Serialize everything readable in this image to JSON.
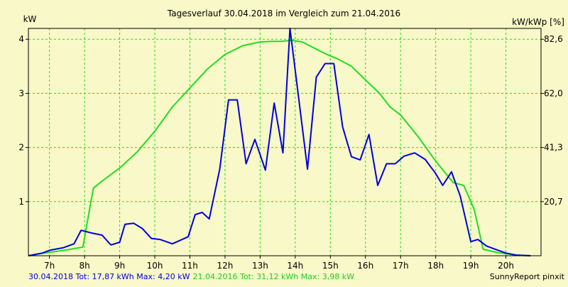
{
  "chart_data": {
    "type": "line",
    "title": "Tagesverlauf 30.04.2018 im Vergleich zum 21.04.2016",
    "ylabel_left": "kW",
    "ylabel_right": "kW/kWp [%]",
    "xlim": [
      6.4,
      21.0
    ],
    "ylim": [
      0,
      4.2
    ],
    "y_ticks_left": [
      {
        "value": 1,
        "label": "1"
      },
      {
        "value": 2,
        "label": "2"
      },
      {
        "value": 3,
        "label": "3"
      },
      {
        "value": 4,
        "label": "4"
      }
    ],
    "y_ticks_right": [
      {
        "value": 1,
        "label": "20,7"
      },
      {
        "value": 2,
        "label": "41,3"
      },
      {
        "value": 3,
        "label": "62,0"
      },
      {
        "value": 4,
        "label": "82,6"
      }
    ],
    "x_ticks": [
      {
        "value": 7,
        "label": "7h"
      },
      {
        "value": 8,
        "label": "8h"
      },
      {
        "value": 9,
        "label": "9h"
      },
      {
        "value": 10,
        "label": "10h"
      },
      {
        "value": 11,
        "label": "11h"
      },
      {
        "value": 12,
        "label": "12h"
      },
      {
        "value": 13,
        "label": "13h"
      },
      {
        "value": 14,
        "label": "14h"
      },
      {
        "value": 15,
        "label": "15h"
      },
      {
        "value": 16,
        "label": "16h"
      },
      {
        "value": 17,
        "label": "17h"
      },
      {
        "value": 18,
        "label": "18h"
      },
      {
        "value": 19,
        "label": "19h"
      },
      {
        "value": 20,
        "label": "20h"
      }
    ],
    "grid": true,
    "series": [
      {
        "color": "#22dd22",
        "x": [
          6.4,
          6.85,
          7.2,
          7.6,
          7.95,
          8.25,
          8.5,
          9.0,
          9.5,
          10.0,
          10.5,
          11.0,
          11.5,
          12.0,
          12.5,
          13.0,
          13.35,
          13.6,
          13.9,
          14.2,
          14.5,
          14.9,
          15.2,
          15.6,
          16.0,
          16.4,
          16.7,
          17.0,
          17.5,
          18.0,
          18.5,
          18.8,
          19.1,
          19.35,
          19.75,
          20.2,
          20.7
        ],
        "y": [
          0.0,
          0.05,
          0.08,
          0.12,
          0.16,
          1.25,
          1.38,
          1.62,
          1.92,
          2.3,
          2.75,
          3.1,
          3.45,
          3.72,
          3.88,
          3.95,
          3.96,
          3.96,
          3.98,
          3.95,
          3.85,
          3.72,
          3.64,
          3.5,
          3.25,
          3.0,
          2.75,
          2.6,
          2.2,
          1.75,
          1.35,
          1.3,
          0.85,
          0.12,
          0.06,
          0.02,
          0.0
        ]
      },
      {
        "color": "#0000dd",
        "x": [
          6.4,
          6.8,
          7.0,
          7.4,
          7.7,
          7.9,
          8.2,
          8.5,
          8.75,
          9.0,
          9.15,
          9.4,
          9.65,
          9.9,
          10.15,
          10.5,
          10.95,
          11.15,
          11.35,
          11.55,
          11.85,
          12.1,
          12.35,
          12.6,
          12.85,
          13.15,
          13.4,
          13.65,
          13.85,
          14.1,
          14.35,
          14.6,
          14.85,
          15.1,
          15.35,
          15.6,
          15.85,
          16.1,
          16.35,
          16.6,
          16.85,
          17.1,
          17.4,
          17.7,
          18.0,
          18.2,
          18.45,
          18.7,
          19.0,
          19.2,
          19.45,
          19.7,
          20.0,
          20.3,
          20.7
        ],
        "y": [
          0.0,
          0.05,
          0.1,
          0.15,
          0.22,
          0.47,
          0.42,
          0.38,
          0.2,
          0.25,
          0.58,
          0.6,
          0.5,
          0.32,
          0.3,
          0.22,
          0.35,
          0.76,
          0.8,
          0.68,
          1.6,
          2.88,
          2.88,
          1.7,
          2.15,
          1.58,
          2.82,
          1.9,
          4.2,
          2.9,
          1.6,
          3.3,
          3.55,
          3.55,
          2.38,
          1.83,
          1.77,
          2.24,
          1.3,
          1.7,
          1.7,
          1.84,
          1.9,
          1.78,
          1.52,
          1.3,
          1.55,
          1.1,
          0.26,
          0.3,
          0.18,
          0.12,
          0.05,
          0.01,
          0.0
        ]
      }
    ]
  },
  "footer": {
    "series1_label": "30.04.2018 Tot: 17,87 kWh Max: 4,20 kW",
    "series2_label": "21.04.2016 Tot: 31,12 kWh Max: 3,98 kW",
    "credit": "SunnyReport pinxit"
  },
  "colors": {
    "background": "#f8f8c8",
    "grid": "#22dd22",
    "series_2016": "#22dd22",
    "series_2018": "#0000dd"
  }
}
